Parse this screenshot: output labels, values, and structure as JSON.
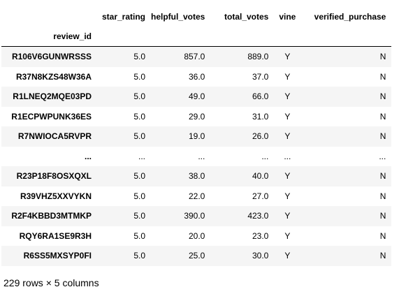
{
  "table": {
    "index_name": "review_id",
    "columns": [
      "star_rating",
      "helpful_votes",
      "total_votes",
      "vine",
      "verified_purchase"
    ],
    "rows": [
      {
        "id": "R106V6GUNWRSSS",
        "values": [
          "5.0",
          "857.0",
          "889.0",
          "Y",
          "N"
        ]
      },
      {
        "id": "R37N8KZS48W36A",
        "values": [
          "5.0",
          "36.0",
          "37.0",
          "Y",
          "N"
        ]
      },
      {
        "id": "R1LNEQ2MQE03PD",
        "values": [
          "5.0",
          "49.0",
          "66.0",
          "Y",
          "N"
        ]
      },
      {
        "id": "R1ECPWPUNK36ES",
        "values": [
          "5.0",
          "29.0",
          "31.0",
          "Y",
          "N"
        ]
      },
      {
        "id": "R7NWIOCA5RVPR",
        "values": [
          "5.0",
          "19.0",
          "26.0",
          "Y",
          "N"
        ]
      },
      {
        "id": "...",
        "values": [
          "...",
          "...",
          "...",
          "...",
          "..."
        ]
      },
      {
        "id": "R23P18F8OSXQXL",
        "values": [
          "5.0",
          "38.0",
          "40.0",
          "Y",
          "N"
        ]
      },
      {
        "id": "R39VHZ5XXVYKN",
        "values": [
          "5.0",
          "22.0",
          "27.0",
          "Y",
          "N"
        ]
      },
      {
        "id": "R2F4KBBD3MTMKP",
        "values": [
          "5.0",
          "390.0",
          "423.0",
          "Y",
          "N"
        ]
      },
      {
        "id": "RQY6RA1SE9R3H",
        "values": [
          "5.0",
          "20.0",
          "23.0",
          "Y",
          "N"
        ]
      },
      {
        "id": "R6SS5MXSYP0FI",
        "values": [
          "5.0",
          "25.0",
          "30.0",
          "Y",
          "N"
        ]
      }
    ]
  },
  "shape_info": "229 rows × 5 columns"
}
